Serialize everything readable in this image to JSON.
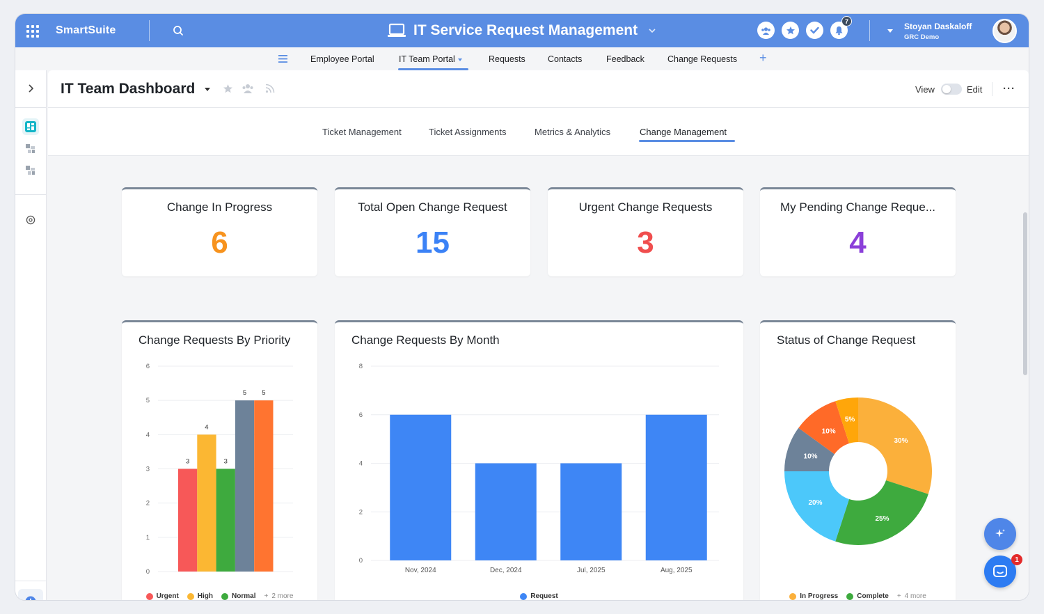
{
  "app": {
    "brand": "SmartSuite",
    "title": "IT Service Request Management",
    "notification_count": "7",
    "user_name": "Stoyan Daskaloff",
    "user_org": "GRC Demo"
  },
  "subnav": {
    "items": [
      "Employee Portal",
      "IT Team Portal",
      "Requests",
      "Contacts",
      "Feedback",
      "Change Requests"
    ],
    "active": "IT Team Portal"
  },
  "dashboard": {
    "title": "IT Team Dashboard",
    "view_label": "View",
    "edit_label": "Edit",
    "tabs": [
      "Ticket Management",
      "Ticket Assignments",
      "Metrics & Analytics",
      "Change Management"
    ],
    "active_tab": "Change Management"
  },
  "kpis": [
    {
      "title": "Change In Progress",
      "value": "6",
      "color": "#f7931e"
    },
    {
      "title": "Total Open Change Request",
      "value": "15",
      "color": "#3b82f6"
    },
    {
      "title": "Urgent Change Requests",
      "value": "3",
      "color": "#f04e4e"
    },
    {
      "title": "My Pending Change Reque...",
      "value": "4",
      "color": "#8b3fd9"
    }
  ],
  "chart_data": [
    {
      "type": "bar",
      "title": "Change Requests By Priority",
      "categories": [
        "Urgent",
        "High",
        "Normal",
        "",
        ""
      ],
      "values": [
        3,
        4,
        3,
        5,
        5
      ],
      "colors": [
        "#f75858",
        "#fbb733",
        "#3eaa3e",
        "#6d8299",
        "#ff7430"
      ],
      "yticks": [
        "0",
        "1",
        "2",
        "3",
        "4",
        "5",
        "6"
      ],
      "ylim": [
        0,
        6
      ],
      "legend": [
        "Urgent",
        "High",
        "Normal"
      ],
      "legend_more": "2 more"
    },
    {
      "type": "bar",
      "title": "Change Requests By Month",
      "categories": [
        "Nov, 2024",
        "Dec, 2024",
        "Jul, 2025",
        "Aug, 2025"
      ],
      "series": [
        {
          "name": "Request",
          "values": [
            6,
            4,
            4,
            6
          ],
          "color": "#3e86f5"
        }
      ],
      "yticks": [
        "0",
        "2",
        "4",
        "6",
        "8"
      ],
      "ylim": [
        0,
        8
      ],
      "legend": [
        "Request"
      ]
    },
    {
      "type": "pie",
      "title": "Status of Change Request",
      "slices": [
        {
          "label": "30%",
          "value": 30,
          "color": "#fbb03b"
        },
        {
          "label": "25%",
          "value": 25,
          "color": "#3eaa3e"
        },
        {
          "label": "20%",
          "value": 20,
          "color": "#4cc8fa"
        },
        {
          "label": "10%",
          "value": 10,
          "color": "#6d8299"
        },
        {
          "label": "10%",
          "value": 10,
          "color": "#ff6a28"
        },
        {
          "label": "5%",
          "value": 5,
          "color": "#ffa60a"
        }
      ],
      "legend": [
        "In Progress",
        "Complete"
      ],
      "legend_more": "4 more"
    }
  ]
}
